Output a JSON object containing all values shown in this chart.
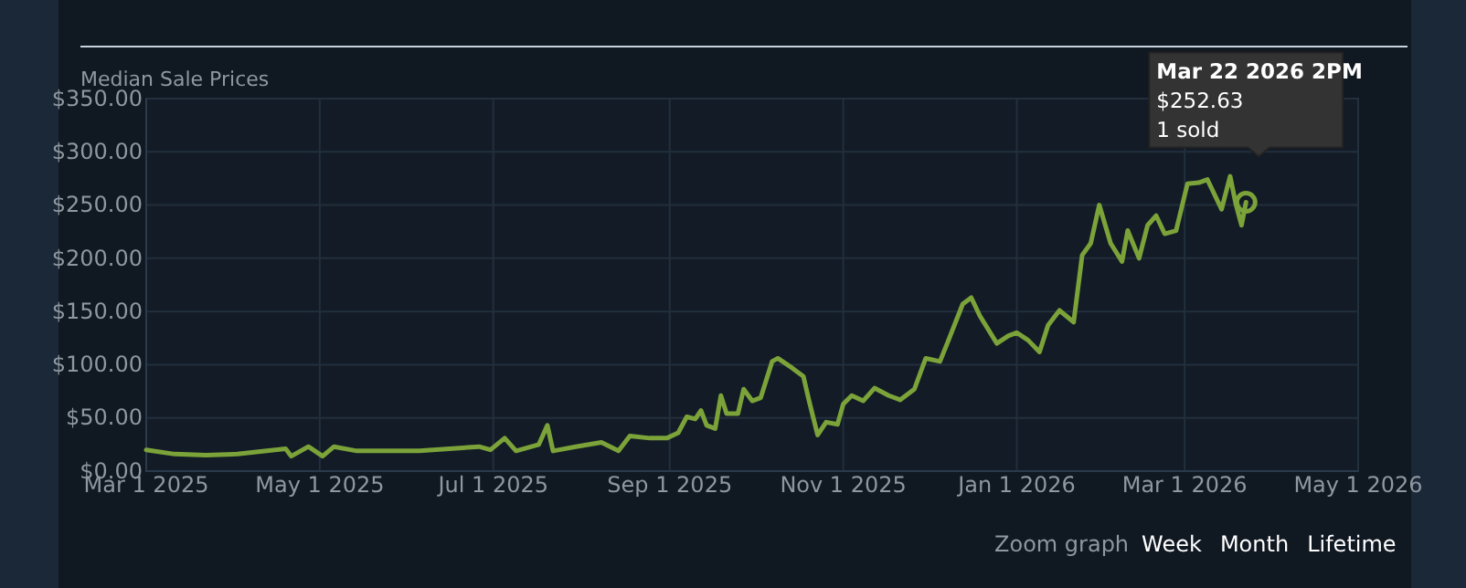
{
  "chart_data": {
    "type": "line",
    "ylabel": "Median Sale Prices",
    "x": [
      "2025-03-01",
      "2025-03-11",
      "2025-03-22",
      "2025-04-02",
      "2025-04-19",
      "2025-04-21",
      "2025-04-27",
      "2025-05-02",
      "2025-05-06",
      "2025-05-14",
      "2025-06-05",
      "2025-06-26",
      "2025-06-30",
      "2025-07-05",
      "2025-07-09",
      "2025-07-17",
      "2025-07-20",
      "2025-07-22",
      "2025-07-30",
      "2025-08-08",
      "2025-08-14",
      "2025-08-18",
      "2025-08-25",
      "2025-08-31",
      "2025-09-04",
      "2025-09-07",
      "2025-09-10",
      "2025-09-12",
      "2025-09-14",
      "2025-09-17",
      "2025-09-19",
      "2025-09-21",
      "2025-09-25",
      "2025-09-27",
      "2025-09-30",
      "2025-10-03",
      "2025-10-07",
      "2025-10-09",
      "2025-10-14",
      "2025-10-18",
      "2025-10-20",
      "2025-10-23",
      "2025-10-26",
      "2025-10-30",
      "2025-11-01",
      "2025-11-04",
      "2025-11-08",
      "2025-11-12",
      "2025-11-17",
      "2025-11-21",
      "2025-11-26",
      "2025-11-30",
      "2025-12-05",
      "2025-12-08",
      "2025-12-13",
      "2025-12-16",
      "2025-12-19",
      "2025-12-25",
      "2025-12-29",
      "2026-01-01",
      "2026-01-05",
      "2026-01-09",
      "2026-01-12",
      "2026-01-16",
      "2026-01-21",
      "2026-01-24",
      "2026-01-27",
      "2026-01-30",
      "2026-02-03",
      "2026-02-07",
      "2026-02-09",
      "2026-02-13",
      "2026-02-16",
      "2026-02-19",
      "2026-02-22",
      "2026-02-26",
      "2026-03-02",
      "2026-03-06",
      "2026-03-09",
      "2026-03-14",
      "2026-03-17",
      "2026-03-19",
      "2026-03-21",
      "2026-03-22T14:00"
    ],
    "series": [
      {
        "color": "#7ba339",
        "values": [
          20,
          16,
          15,
          16,
          21,
          14,
          23,
          14,
          23,
          19,
          19,
          23,
          20,
          31,
          19,
          25,
          43,
          19,
          23,
          27,
          19,
          33,
          31,
          31,
          36,
          51,
          49,
          57,
          43,
          40,
          71,
          54,
          54,
          77,
          66,
          69,
          103,
          106,
          97,
          89,
          66,
          34,
          46,
          44,
          63,
          71,
          66,
          78,
          71,
          67,
          77,
          106,
          103,
          123,
          157,
          163,
          146,
          120,
          127,
          130,
          123,
          112,
          137,
          151,
          140,
          203,
          214,
          250,
          214,
          197,
          226,
          200,
          231,
          240,
          223,
          226,
          270,
          271,
          274,
          246,
          277,
          251,
          231,
          252.63
        ]
      }
    ],
    "xlim": [
      "2025-03-01",
      "2026-05-01"
    ],
    "xticks": [
      {
        "value": "2025-03-01",
        "label": "Mar 1 2025"
      },
      {
        "value": "2025-05-01",
        "label": "May 1 2025"
      },
      {
        "value": "2025-07-01",
        "label": "Jul 1 2025"
      },
      {
        "value": "2025-09-01",
        "label": "Sep 1 2025"
      },
      {
        "value": "2025-11-01",
        "label": "Nov 1 2025"
      },
      {
        "value": "2026-01-01",
        "label": "Jan 1 2026"
      },
      {
        "value": "2026-03-01",
        "label": "Mar 1 2026"
      },
      {
        "value": "2026-05-01",
        "label": "May 1 2026"
      }
    ],
    "ylim": [
      0,
      350
    ],
    "yticks": [
      {
        "value": 0,
        "label": "$0.00"
      },
      {
        "value": 50,
        "label": "$50.00"
      },
      {
        "value": 100,
        "label": "$100.00"
      },
      {
        "value": 150,
        "label": "$150.00"
      },
      {
        "value": 200,
        "label": "$200.00"
      },
      {
        "value": 250,
        "label": "$250.00"
      },
      {
        "value": 300,
        "label": "$300.00"
      },
      {
        "value": 350,
        "label": "$350.00"
      }
    ],
    "grid": true,
    "marker": "none",
    "line_style": "solid",
    "annotations": [
      {
        "text": "Mar 22 2026 2PM\n$252.63\n1 sold",
        "x": "2026-03-22T14:00",
        "y": 252.63
      },
      "Zoom graph",
      "Week",
      "Month",
      "Lifetime"
    ]
  }
}
